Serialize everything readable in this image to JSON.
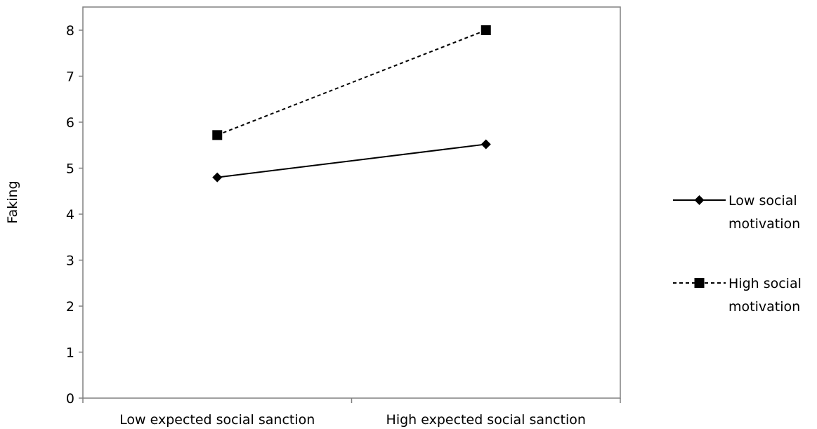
{
  "chart_data": {
    "type": "line",
    "title": "",
    "xlabel": "",
    "ylabel": "Faking",
    "categories": [
      "Low expected social sanction",
      "High expected social sanction"
    ],
    "ylim": [
      0,
      8
    ],
    "yticks": [
      0,
      1,
      2,
      3,
      4,
      5,
      6,
      7,
      8
    ],
    "grid": false,
    "legend_position": "right",
    "series": [
      {
        "name": "Low social motivation",
        "legend_lines": [
          "Low social",
          "motivation"
        ],
        "values": [
          4.8,
          5.52
        ],
        "line_style": "solid",
        "marker": "diamond",
        "color": "#000000"
      },
      {
        "name": "High social motivation",
        "legend_lines": [
          "High social",
          "motivation"
        ],
        "values": [
          5.72,
          8.0
        ],
        "line_style": "dashed",
        "marker": "square",
        "color": "#000000"
      }
    ]
  }
}
